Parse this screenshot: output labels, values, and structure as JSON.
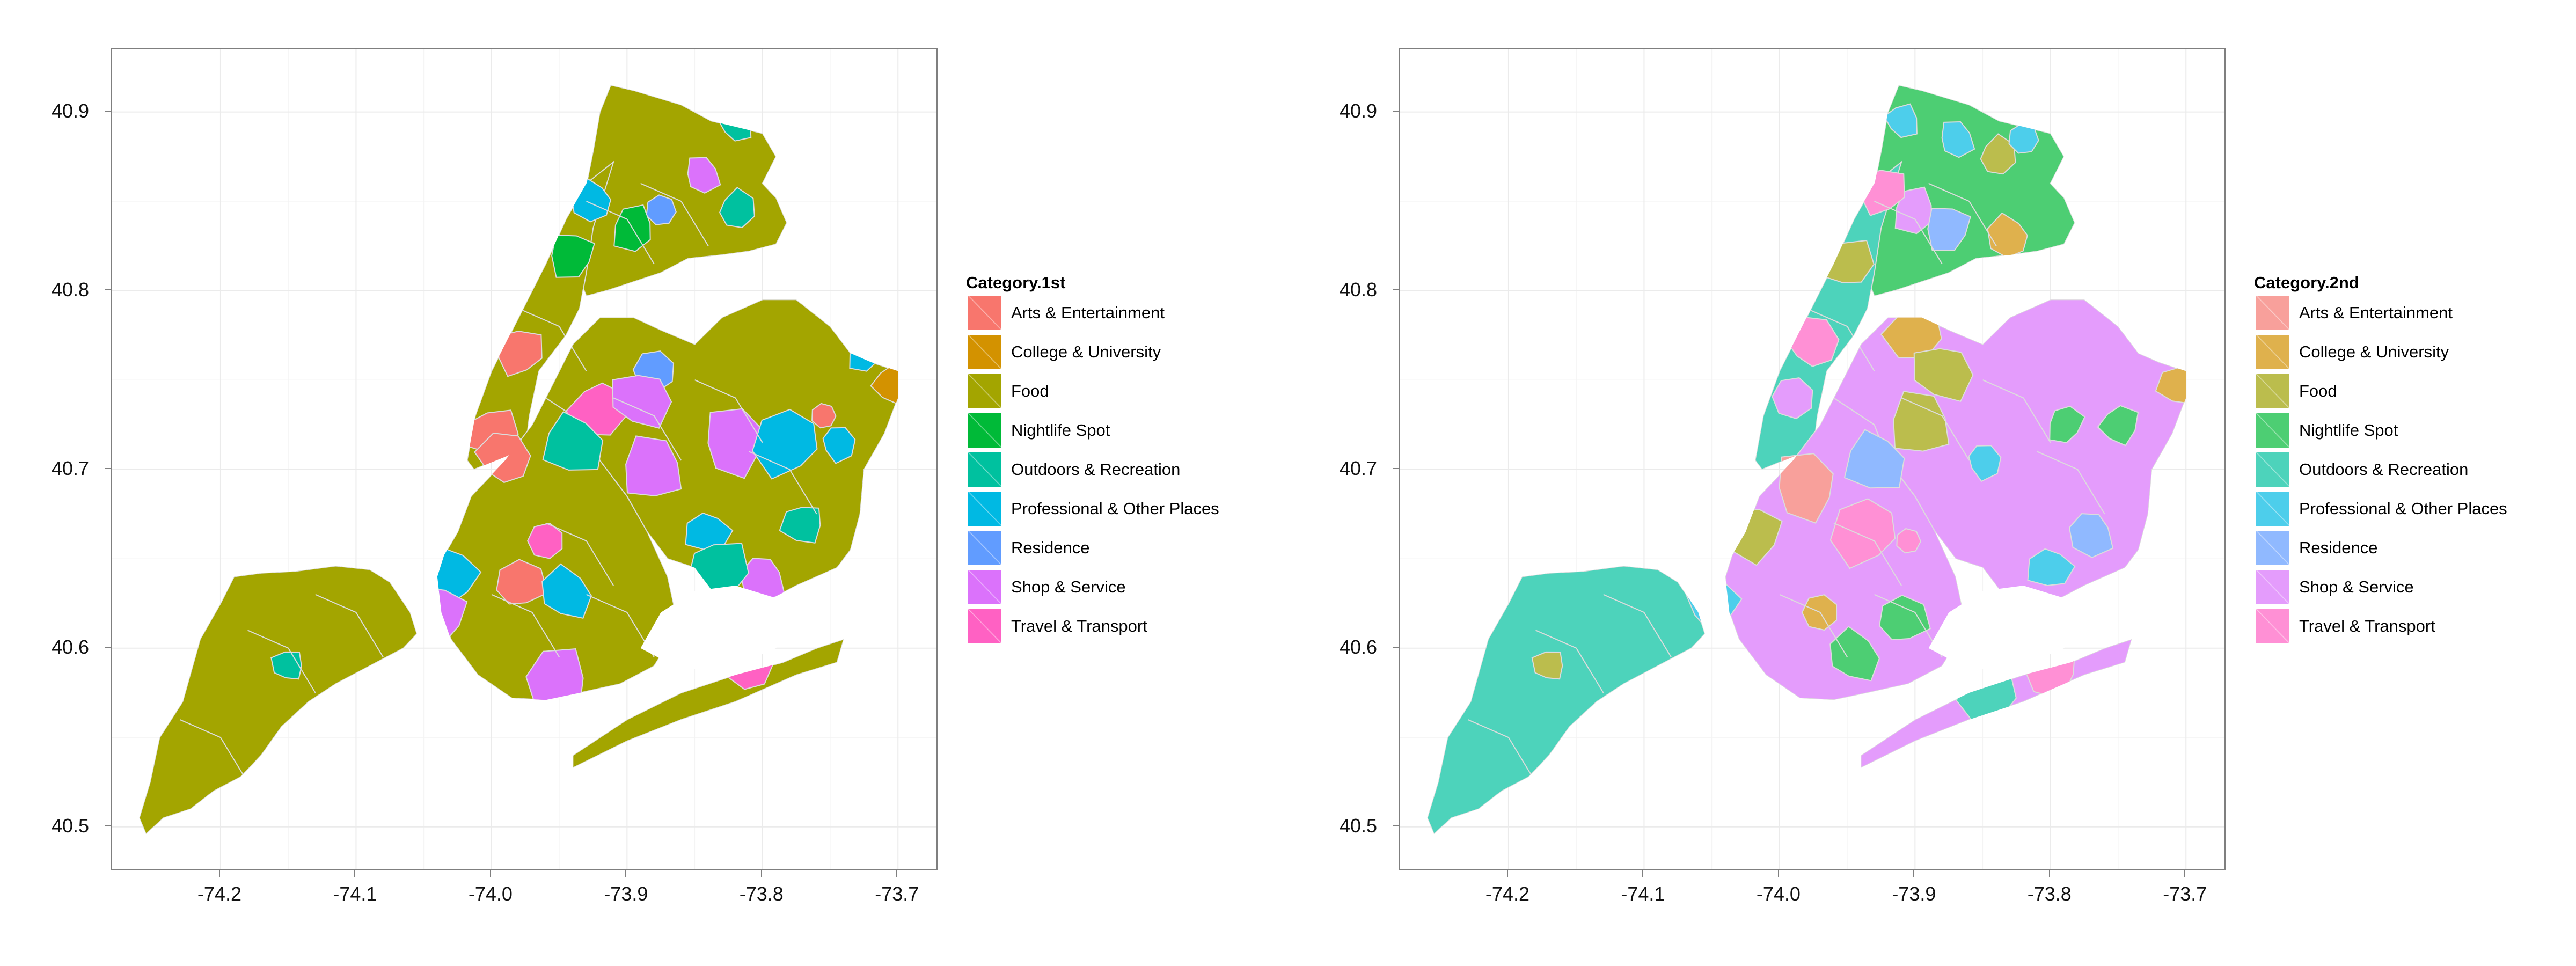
{
  "axes": {
    "x_ticks": [
      "-74.2",
      "-74.1",
      "-74.0",
      "-73.9",
      "-73.8",
      "-73.7"
    ],
    "y_ticks": [
      "40.9",
      "40.8",
      "40.7",
      "40.6",
      "40.5"
    ]
  },
  "chart_data": [
    {
      "type": "choropleth map",
      "legend_title": "Category.1st",
      "legend_position": "right",
      "grid": true,
      "xlim": [
        -74.28,
        -73.67
      ],
      "ylim": [
        40.475,
        40.935
      ],
      "categories": [
        {
          "name": "Arts & Entertainment",
          "color": "#F8766D"
        },
        {
          "name": "College & University",
          "color": "#D39200"
        },
        {
          "name": "Food",
          "color": "#A3A500"
        },
        {
          "name": "Nightlife Spot",
          "color": "#00BA38"
        },
        {
          "name": "Outdoors & Recreation",
          "color": "#00C19F"
        },
        {
          "name": "Professional & Other Places",
          "color": "#00B9E3"
        },
        {
          "name": "Residence",
          "color": "#619CFF"
        },
        {
          "name": "Shop & Service",
          "color": "#DB72FB"
        },
        {
          "name": "Travel & Transport",
          "color": "#FF61C3"
        }
      ],
      "base_color": "#A3A500",
      "background_regions": [
        {
          "name": "Staten Island",
          "category": "Food"
        },
        {
          "name": "Bronx",
          "category": "Food"
        },
        {
          "name": "Manhattan",
          "category": "Food"
        },
        {
          "name": "Brooklyn",
          "category": "Food"
        },
        {
          "name": "Queens",
          "category": "Food"
        }
      ],
      "highlight_regions": [
        {
          "lon": -74.15,
          "lat": 40.59,
          "category": "Outdoors & Recreation"
        },
        {
          "lon": -73.82,
          "lat": 40.893,
          "category": "Outdoors & Recreation"
        },
        {
          "lon": -73.845,
          "lat": 40.865,
          "category": "Shop & Service"
        },
        {
          "lon": -73.82,
          "lat": 40.845,
          "category": "Outdoors & Recreation"
        },
        {
          "lon": -73.875,
          "lat": 40.845,
          "category": "Residence"
        },
        {
          "lon": -73.925,
          "lat": 40.85,
          "category": "Professional & Other Places"
        },
        {
          "lon": -73.895,
          "lat": 40.835,
          "category": "Nightlife Spot"
        },
        {
          "lon": -73.94,
          "lat": 40.82,
          "category": "Nightlife Spot"
        },
        {
          "lon": -73.98,
          "lat": 40.765,
          "category": "Arts & Entertainment"
        },
        {
          "lon": -74.0,
          "lat": 40.72,
          "category": "Arts & Entertainment"
        },
        {
          "lon": -73.99,
          "lat": 40.705,
          "category": "Arts & Entertainment"
        },
        {
          "lon": -73.88,
          "lat": 40.755,
          "category": "Residence"
        },
        {
          "lon": -73.92,
          "lat": 40.735,
          "category": "Travel & Transport"
        },
        {
          "lon": -73.89,
          "lat": 40.74,
          "category": "Shop & Service"
        },
        {
          "lon": -73.94,
          "lat": 40.715,
          "category": "Outdoors & Recreation"
        },
        {
          "lon": -73.88,
          "lat": 40.7,
          "category": "Shop & Service"
        },
        {
          "lon": -73.82,
          "lat": 40.715,
          "category": "Shop & Service"
        },
        {
          "lon": -73.78,
          "lat": 40.715,
          "category": "Professional & Other Places"
        },
        {
          "lon": -73.755,
          "lat": 40.73,
          "category": "Arts & Entertainment"
        },
        {
          "lon": -73.745,
          "lat": 40.715,
          "category": "Professional & Other Places"
        },
        {
          "lon": -73.725,
          "lat": 40.765,
          "category": "Professional & Other Places"
        },
        {
          "lon": -73.705,
          "lat": 40.748,
          "category": "College & University"
        },
        {
          "lon": -73.77,
          "lat": 40.67,
          "category": "Outdoors & Recreation"
        },
        {
          "lon": -73.84,
          "lat": 40.665,
          "category": "Professional & Other Places"
        },
        {
          "lon": -73.8,
          "lat": 40.64,
          "category": "Shop & Service"
        },
        {
          "lon": -73.96,
          "lat": 40.66,
          "category": "Travel & Transport"
        },
        {
          "lon": -73.98,
          "lat": 40.635,
          "category": "Arts & Entertainment"
        },
        {
          "lon": -73.945,
          "lat": 40.63,
          "category": "Professional & Other Places"
        },
        {
          "lon": -74.03,
          "lat": 40.64,
          "category": "Professional & Other Places"
        },
        {
          "lon": -74.04,
          "lat": 40.62,
          "category": "Shop & Service"
        },
        {
          "lon": -73.835,
          "lat": 40.605,
          "category": "Travel & Transport"
        },
        {
          "lon": -73.835,
          "lat": 40.645,
          "category": "Outdoors & Recreation"
        },
        {
          "lon": -73.81,
          "lat": 40.59,
          "category": "Travel & Transport"
        },
        {
          "lon": -73.95,
          "lat": 40.58,
          "category": "Shop & Service"
        }
      ]
    },
    {
      "type": "choropleth map",
      "legend_title": "Category.2nd",
      "legend_position": "right",
      "grid": true,
      "xlim": [
        -74.28,
        -73.67
      ],
      "ylim": [
        40.475,
        40.935
      ],
      "categories": [
        {
          "name": "Arts & Entertainment",
          "color": "#F8A09B"
        },
        {
          "name": "College & University",
          "color": "#DFB14D"
        },
        {
          "name": "Food",
          "color": "#BBBD4D"
        },
        {
          "name": "Nightlife Spot",
          "color": "#4DCE73"
        },
        {
          "name": "Outdoors & Recreation",
          "color": "#4DD3BB"
        },
        {
          "name": "Professional & Other Places",
          "color": "#4DCEEB"
        },
        {
          "name": "Residence",
          "color": "#90B9FF"
        },
        {
          "name": "Shop & Service",
          "color": "#E49CFC"
        },
        {
          "name": "Travel & Transport",
          "color": "#FF90D5"
        }
      ],
      "base_color": "#E49CFC",
      "background_regions": [
        {
          "name": "Staten Island",
          "category": "Outdoors & Recreation"
        },
        {
          "name": "Bronx",
          "category": "Nightlife Spot"
        },
        {
          "name": "Manhattan",
          "category": "Outdoors & Recreation"
        },
        {
          "name": "Brooklyn",
          "category": "Shop & Service"
        },
        {
          "name": "Queens",
          "category": "Shop & Service"
        }
      ],
      "highlight_regions": [
        {
          "lon": -74.17,
          "lat": 40.59,
          "category": "Food"
        },
        {
          "lon": -73.91,
          "lat": 40.895,
          "category": "Professional & Other Places"
        },
        {
          "lon": -73.87,
          "lat": 40.885,
          "category": "Professional & Other Places"
        },
        {
          "lon": -73.84,
          "lat": 40.875,
          "category": "Food"
        },
        {
          "lon": -73.82,
          "lat": 40.885,
          "category": "Professional & Other Places"
        },
        {
          "lon": -73.83,
          "lat": 40.83,
          "category": "College & University"
        },
        {
          "lon": -73.9,
          "lat": 40.845,
          "category": "Shop & Service"
        },
        {
          "lon": -73.875,
          "lat": 40.835,
          "category": "Residence"
        },
        {
          "lon": -73.925,
          "lat": 40.855,
          "category": "Travel & Transport"
        },
        {
          "lon": -73.95,
          "lat": 40.815,
          "category": "Food"
        },
        {
          "lon": -73.975,
          "lat": 40.77,
          "category": "Travel & Transport"
        },
        {
          "lon": -73.99,
          "lat": 40.74,
          "category": "Shop & Service"
        },
        {
          "lon": -73.9,
          "lat": 40.778,
          "category": "College & University"
        },
        {
          "lon": -73.88,
          "lat": 40.755,
          "category": "Food"
        },
        {
          "lon": -73.93,
          "lat": 40.705,
          "category": "Residence"
        },
        {
          "lon": -73.895,
          "lat": 40.725,
          "category": "Food"
        },
        {
          "lon": -73.98,
          "lat": 40.69,
          "category": "Arts & Entertainment"
        },
        {
          "lon": -73.935,
          "lat": 40.665,
          "category": "Travel & Transport"
        },
        {
          "lon": -73.905,
          "lat": 40.66,
          "category": "Travel & Transport"
        },
        {
          "lon": -73.85,
          "lat": 40.705,
          "category": "Professional & Other Places"
        },
        {
          "lon": -73.79,
          "lat": 40.725,
          "category": "Nightlife Spot"
        },
        {
          "lon": -73.75,
          "lat": 40.725,
          "category": "Nightlife Spot"
        },
        {
          "lon": -73.705,
          "lat": 40.748,
          "category": "College & University"
        },
        {
          "lon": -73.8,
          "lat": 40.645,
          "category": "Professional & Other Places"
        },
        {
          "lon": -73.77,
          "lat": 40.665,
          "category": "Residence"
        },
        {
          "lon": -73.97,
          "lat": 40.62,
          "category": "College & University"
        },
        {
          "lon": -73.91,
          "lat": 40.615,
          "category": "Nightlife Spot"
        },
        {
          "lon": -73.945,
          "lat": 40.595,
          "category": "Nightlife Spot"
        },
        {
          "lon": -74.05,
          "lat": 40.625,
          "category": "Professional & Other Places"
        },
        {
          "lon": -74.02,
          "lat": 40.665,
          "category": "Food"
        },
        {
          "lon": -73.8,
          "lat": 40.59,
          "category": "Travel & Transport"
        },
        {
          "lon": -73.85,
          "lat": 40.575,
          "category": "Outdoors & Recreation"
        }
      ]
    }
  ]
}
